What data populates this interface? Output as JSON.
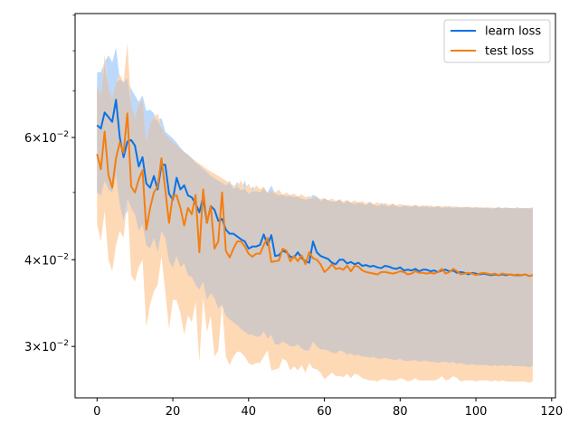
{
  "chart_data": {
    "type": "line",
    "title": "",
    "xlabel": "",
    "ylabel": "",
    "yscale": "log",
    "xlim": [
      -5.8,
      121
    ],
    "ylim": [
      0.0253,
      0.0905
    ],
    "xticks": [
      0,
      20,
      40,
      60,
      80,
      100,
      120
    ],
    "xtick_labels": [
      "0",
      "20",
      "40",
      "60",
      "80",
      "100",
      "120"
    ],
    "yticks_major": [
      0.03,
      0.04,
      0.06
    ],
    "ytick_base": [
      "3",
      "4",
      "6"
    ],
    "ytick_exp": [
      "−2",
      "−2",
      "−2"
    ],
    "ytick_mantissa_suffix": "×10",
    "yticks_minor": [
      0.05,
      0.07,
      0.08,
      0.09
    ],
    "legend_position": "upper-right",
    "grid": false,
    "series": [
      {
        "name": "learn loss",
        "color": "#0773e6",
        "band_color": "#bcd9fb",
        "x": [
          0,
          1,
          2,
          3,
          4,
          5,
          6,
          7,
          8,
          9,
          10,
          11,
          12,
          13,
          14,
          15,
          16,
          17,
          18,
          19,
          20,
          21,
          22,
          23,
          24,
          25,
          26,
          27,
          28,
          29,
          30,
          31,
          32,
          33,
          34,
          35,
          36,
          37,
          38,
          39,
          40,
          41,
          42,
          43,
          44,
          45,
          46,
          47,
          48,
          49,
          50,
          51,
          52,
          53,
          54,
          55,
          56,
          57,
          58,
          59,
          60,
          61,
          62,
          63,
          64,
          65,
          66,
          67,
          68,
          69,
          70,
          71,
          72,
          73,
          74,
          75,
          76,
          77,
          78,
          79,
          80,
          81,
          82,
          83,
          84,
          85,
          86,
          87,
          88,
          89,
          90,
          91,
          92,
          93,
          94,
          95,
          96,
          97,
          98,
          99,
          100,
          101,
          102,
          103,
          104,
          105,
          106,
          107,
          108,
          109,
          110,
          111,
          112,
          113,
          114,
          115
        ],
        "values": [
          0.0625,
          0.0618,
          0.0652,
          0.0642,
          0.0632,
          0.068,
          0.06,
          0.0562,
          0.0592,
          0.0595,
          0.0584,
          0.0545,
          0.0562,
          0.0515,
          0.0508,
          0.0528,
          0.0505,
          0.0548,
          0.0548,
          0.0498,
          0.0488,
          0.0525,
          0.0505,
          0.0512,
          0.0495,
          0.0492,
          0.0482,
          0.0468,
          0.0492,
          0.0452,
          0.0478,
          0.0472,
          0.0455,
          0.0458,
          0.0442,
          0.0436,
          0.0436,
          0.0432,
          0.0428,
          0.0425,
          0.0415,
          0.0418,
          0.0418,
          0.042,
          0.0435,
          0.042,
          0.0434,
          0.0405,
          0.0406,
          0.0412,
          0.041,
          0.0404,
          0.0403,
          0.041,
          0.0402,
          0.0398,
          0.0396,
          0.0425,
          0.041,
          0.0405,
          0.0403,
          0.0401,
          0.0396,
          0.0394,
          0.04,
          0.04,
          0.0395,
          0.0397,
          0.0394,
          0.0396,
          0.0392,
          0.0393,
          0.0391,
          0.0392,
          0.039,
          0.0389,
          0.0392,
          0.0391,
          0.0389,
          0.0388,
          0.039,
          0.0386,
          0.0387,
          0.0386,
          0.0388,
          0.0385,
          0.0387,
          0.0387,
          0.0385,
          0.0386,
          0.0384,
          0.0386,
          0.0387,
          0.0385,
          0.0386,
          0.0383,
          0.0384,
          0.0383,
          0.0381,
          0.0383,
          0.0382,
          0.0381,
          0.0382,
          0.0381,
          0.038,
          0.0381,
          0.038,
          0.0381,
          0.038,
          0.0381,
          0.038,
          0.038,
          0.038,
          0.0381,
          0.0379,
          0.038
        ],
        "upper": [
          0.0745,
          0.0745,
          0.077,
          0.0788,
          0.077,
          0.0808,
          0.0728,
          0.072,
          0.073,
          0.0705,
          0.069,
          0.0675,
          0.069,
          0.0655,
          0.0658,
          0.065,
          0.0635,
          0.064,
          0.0612,
          0.0605,
          0.0598,
          0.059,
          0.058,
          0.0572,
          0.0567,
          0.056,
          0.0552,
          0.0547,
          0.054,
          0.0535,
          0.0528,
          0.0524,
          0.052,
          0.0516,
          0.0512,
          0.052,
          0.0506,
          0.0518,
          0.0504,
          0.052,
          0.0498,
          0.051,
          0.0502,
          0.05,
          0.0507,
          0.05,
          0.0512,
          0.0498,
          0.0495,
          0.0497,
          0.0493,
          0.0496,
          0.0492,
          0.0494,
          0.049,
          0.0488,
          0.049,
          0.0496,
          0.0493,
          0.0486,
          0.049,
          0.0487,
          0.0485,
          0.0485,
          0.0488,
          0.0482,
          0.0486,
          0.0483,
          0.0481,
          0.0485,
          0.0482,
          0.0479,
          0.0484,
          0.048,
          0.0478,
          0.0483,
          0.048,
          0.0477,
          0.0481,
          0.0478,
          0.0476,
          0.048,
          0.0477,
          0.0477,
          0.0479,
          0.0476,
          0.0477,
          0.0479,
          0.0476,
          0.0476,
          0.0478,
          0.0475,
          0.0476,
          0.0478,
          0.0475,
          0.0477,
          0.0475,
          0.0476,
          0.0476,
          0.0474,
          0.0476,
          0.0475,
          0.0475,
          0.0476,
          0.0474,
          0.0475,
          0.0476,
          0.0474,
          0.0475,
          0.0475,
          0.0474,
          0.0476,
          0.0474,
          0.0475,
          0.0474,
          0.0475
        ],
        "lower": [
          0.05,
          0.0495,
          0.052,
          0.0505,
          0.05,
          0.053,
          0.048,
          0.0455,
          0.047,
          0.0475,
          0.0465,
          0.044,
          0.045,
          0.042,
          0.0415,
          0.043,
          0.041,
          0.044,
          0.043,
          0.0398,
          0.039,
          0.0405,
          0.039,
          0.0395,
          0.038,
          0.0378,
          0.0368,
          0.0362,
          0.0372,
          0.035,
          0.0358,
          0.0352,
          0.034,
          0.0342,
          0.0332,
          0.0328,
          0.0325,
          0.0322,
          0.0318,
          0.0315,
          0.0312,
          0.0312,
          0.031,
          0.031,
          0.0315,
          0.0308,
          0.0312,
          0.0302,
          0.0302,
          0.0305,
          0.0303,
          0.03,
          0.03,
          0.0302,
          0.0298,
          0.0296,
          0.0296,
          0.0305,
          0.03,
          0.0297,
          0.0297,
          0.0296,
          0.0294,
          0.0293,
          0.0296,
          0.0295,
          0.0292,
          0.0293,
          0.0291,
          0.0292,
          0.029,
          0.029,
          0.0289,
          0.029,
          0.0288,
          0.0288,
          0.0289,
          0.0288,
          0.0287,
          0.0287,
          0.0288,
          0.0286,
          0.0286,
          0.0286,
          0.0287,
          0.0285,
          0.0286,
          0.0286,
          0.0285,
          0.0285,
          0.0284,
          0.0285,
          0.0285,
          0.0284,
          0.0285,
          0.0283,
          0.0284,
          0.0283,
          0.0282,
          0.0283,
          0.0282,
          0.0282,
          0.0282,
          0.0282,
          0.0281,
          0.0282,
          0.0281,
          0.0282,
          0.0281,
          0.0282,
          0.0281,
          0.0281,
          0.0281,
          0.0281,
          0.028,
          0.0281
        ]
      },
      {
        "name": "test loss",
        "color": "#f57e0f",
        "band_color": "#fed9b6",
        "x": [
          0,
          1,
          2,
          3,
          4,
          5,
          6,
          7,
          8,
          9,
          10,
          11,
          12,
          13,
          14,
          15,
          16,
          17,
          18,
          19,
          20,
          21,
          22,
          23,
          24,
          25,
          26,
          27,
          28,
          29,
          30,
          31,
          32,
          33,
          34,
          35,
          36,
          37,
          38,
          39,
          40,
          41,
          42,
          43,
          44,
          45,
          46,
          47,
          48,
          49,
          50,
          51,
          52,
          53,
          54,
          55,
          56,
          57,
          58,
          59,
          60,
          61,
          62,
          63,
          64,
          65,
          66,
          67,
          68,
          69,
          70,
          71,
          72,
          73,
          74,
          75,
          76,
          77,
          78,
          79,
          80,
          81,
          82,
          83,
          84,
          85,
          86,
          87,
          88,
          89,
          90,
          91,
          92,
          93,
          94,
          95,
          96,
          97,
          98,
          99,
          100,
          101,
          102,
          103,
          104,
          105,
          106,
          107,
          108,
          109,
          110,
          111,
          112,
          113,
          114,
          115
        ],
        "values": [
          0.0568,
          0.054,
          0.0612,
          0.053,
          0.0508,
          0.056,
          0.059,
          0.057,
          0.065,
          0.051,
          0.05,
          0.0522,
          0.0538,
          0.0442,
          0.0475,
          0.05,
          0.051,
          0.056,
          0.0505,
          0.0452,
          0.0495,
          0.0495,
          0.0475,
          0.0448,
          0.0475,
          0.0465,
          0.0496,
          0.041,
          0.0505,
          0.0452,
          0.0478,
          0.0415,
          0.0425,
          0.05,
          0.0412,
          0.0403,
          0.0415,
          0.0425,
          0.0425,
          0.0418,
          0.0408,
          0.0404,
          0.0408,
          0.0408,
          0.042,
          0.043,
          0.0397,
          0.0398,
          0.0399,
          0.0415,
          0.0412,
          0.0398,
          0.0405,
          0.0398,
          0.0406,
          0.0394,
          0.041,
          0.0402,
          0.04,
          0.0394,
          0.0384,
          0.0388,
          0.0394,
          0.0388,
          0.0389,
          0.0387,
          0.0392,
          0.0385,
          0.0392,
          0.0391,
          0.0386,
          0.0384,
          0.0383,
          0.0382,
          0.0381,
          0.0384,
          0.0384,
          0.0383,
          0.0382,
          0.0383,
          0.0385,
          0.0384,
          0.0381,
          0.0382,
          0.0385,
          0.0383,
          0.0383,
          0.0382,
          0.0383,
          0.0382,
          0.0384,
          0.0388,
          0.0382,
          0.0384,
          0.0388,
          0.0385,
          0.0381,
          0.0382,
          0.0383,
          0.0382,
          0.038,
          0.0382,
          0.0383,
          0.0382,
          0.0381,
          0.0382,
          0.038,
          0.0382,
          0.0381,
          0.0381,
          0.038,
          0.0381,
          0.038,
          0.0381,
          0.0379,
          0.038
        ],
        "upper": [
          0.071,
          0.069,
          0.079,
          0.071,
          0.068,
          0.072,
          0.074,
          0.072,
          0.082,
          0.067,
          0.064,
          0.067,
          0.068,
          0.059,
          0.063,
          0.064,
          0.065,
          0.062,
          0.0605,
          0.0598,
          0.059,
          0.0585,
          0.0578,
          0.0572,
          0.0566,
          0.056,
          0.0555,
          0.055,
          0.0545,
          0.054,
          0.0536,
          0.0532,
          0.0528,
          0.0524,
          0.052,
          0.0516,
          0.0512,
          0.051,
          0.052,
          0.0506,
          0.0515,
          0.0502,
          0.0512,
          0.0505,
          0.051,
          0.0498,
          0.0502,
          0.05,
          0.0505,
          0.0496,
          0.05,
          0.0495,
          0.0498,
          0.0493,
          0.0497,
          0.0492,
          0.0494,
          0.049,
          0.0493,
          0.0489,
          0.0491,
          0.0487,
          0.049,
          0.0486,
          0.0489,
          0.0485,
          0.0488,
          0.0484,
          0.0487,
          0.0483,
          0.0486,
          0.0482,
          0.0485,
          0.0481,
          0.0484,
          0.048,
          0.0483,
          0.048,
          0.0482,
          0.0479,
          0.0481,
          0.0479,
          0.048,
          0.0478,
          0.048,
          0.0478,
          0.0479,
          0.0477,
          0.0479,
          0.0477,
          0.0478,
          0.0477,
          0.0478,
          0.0476,
          0.0478,
          0.0476,
          0.0477,
          0.0476,
          0.0477,
          0.0476,
          0.0476,
          0.0476,
          0.0476,
          0.0475,
          0.0476,
          0.0475,
          0.0476,
          0.0475,
          0.0476,
          0.0475,
          0.0475,
          0.0475,
          0.0475,
          0.0475,
          0.0475,
          0.0476
        ],
        "lower": [
          0.045,
          0.0425,
          0.047,
          0.04,
          0.0385,
          0.042,
          0.044,
          0.043,
          0.049,
          0.038,
          0.0372,
          0.039,
          0.04,
          0.032,
          0.0345,
          0.036,
          0.0368,
          0.0405,
          0.036,
          0.0318,
          0.035,
          0.035,
          0.0335,
          0.0312,
          0.0333,
          0.0325,
          0.0348,
          0.0285,
          0.0352,
          0.0315,
          0.0332,
          0.029,
          0.0296,
          0.0345,
          0.029,
          0.0282,
          0.029,
          0.0295,
          0.0294,
          0.029,
          0.0284,
          0.0282,
          0.0284,
          0.0284,
          0.029,
          0.0296,
          0.0277,
          0.0278,
          0.0279,
          0.0288,
          0.0286,
          0.0277,
          0.0281,
          0.0277,
          0.0282,
          0.0275,
          0.0284,
          0.0279,
          0.0278,
          0.0275,
          0.0269,
          0.0272,
          0.0275,
          0.0272,
          0.0272,
          0.0271,
          0.0274,
          0.027,
          0.0274,
          0.0273,
          0.027,
          0.0269,
          0.0268,
          0.0268,
          0.0267,
          0.0269,
          0.0269,
          0.0268,
          0.0268,
          0.0268,
          0.027,
          0.0269,
          0.0267,
          0.0268,
          0.027,
          0.0268,
          0.0268,
          0.0268,
          0.0268,
          0.0268,
          0.0269,
          0.0272,
          0.0268,
          0.0269,
          0.0272,
          0.027,
          0.0267,
          0.0268,
          0.0268,
          0.0268,
          0.0267,
          0.0268,
          0.0268,
          0.0268,
          0.0267,
          0.0268,
          0.0267,
          0.0268,
          0.0267,
          0.0267,
          0.0267,
          0.0267,
          0.0267,
          0.0267,
          0.0266,
          0.0267
        ]
      }
    ],
    "overlap_color": "#d3cac6"
  }
}
